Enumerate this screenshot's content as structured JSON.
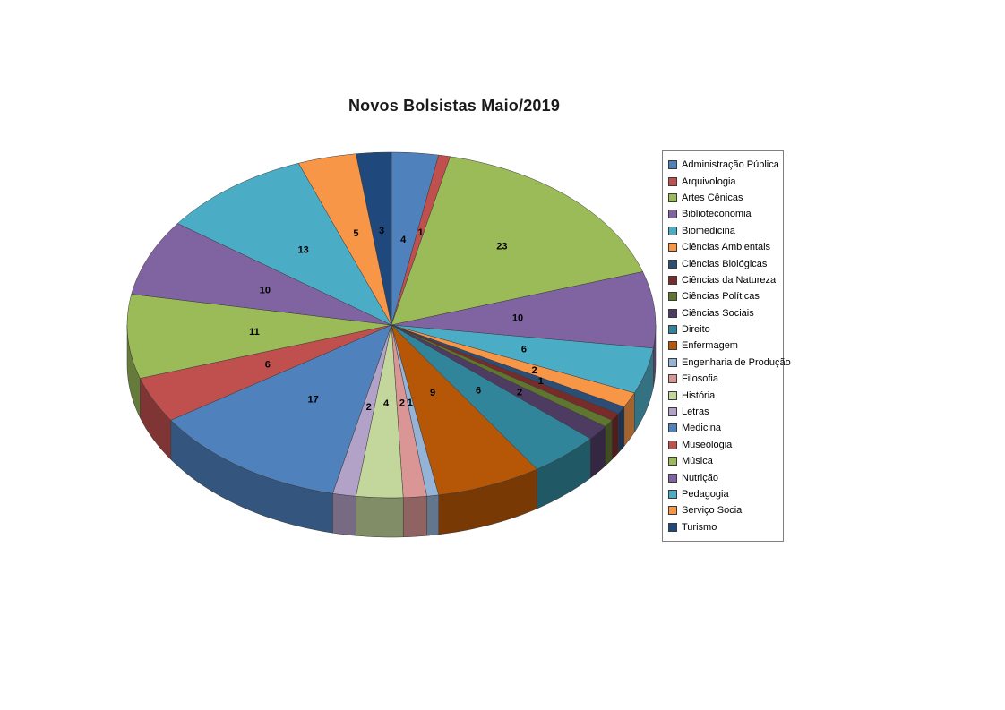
{
  "page": {
    "background": "#ffffff"
  },
  "chart_data": {
    "type": "pie",
    "effect": "3d",
    "title": "Novos Bolsistas Maio/2019",
    "legend_position": "right",
    "data_labels": "values",
    "slices": [
      {
        "name": "Administração Pública",
        "value": 4,
        "color": "#4F81BD",
        "label_visible": true,
        "label_r": 0.5
      },
      {
        "name": "Arquivologia",
        "value": 1,
        "color": "#C0504D",
        "label_visible": true,
        "label_r": 0.55
      },
      {
        "name": "Artes Cênicas",
        "value": 23,
        "color": "#9BBB59",
        "label_visible": true,
        "label_r": 0.62
      },
      {
        "name": "Biblioteconomia",
        "value": 10,
        "color": "#8064A2",
        "label_visible": true,
        "label_r": 0.48
      },
      {
        "name": "Biomedicina",
        "value": 6,
        "color": "#4BACC6",
        "label_visible": true,
        "label_r": 0.52
      },
      {
        "name": "Ciências Ambientais",
        "value": 2,
        "color": "#F79646",
        "label_visible": true,
        "label_r": 0.6
      },
      {
        "name": "Ciências Biológicas",
        "value": 1,
        "color": "#2C4D75",
        "label_visible": true,
        "label_r": 0.65
      },
      {
        "name": "Ciências da Natureza",
        "value": 1,
        "color": "#772C2A",
        "label_visible": false,
        "label_r": 0.65
      },
      {
        "name": "Ciências Políticas",
        "value": 1,
        "color": "#5F7530",
        "label_visible": false,
        "label_r": 0.65
      },
      {
        "name": "Ciências Sociais",
        "value": 2,
        "color": "#4D3B62",
        "label_visible": true,
        "label_r": 0.62
      },
      {
        "name": "Direito",
        "value": 6,
        "color": "#31859B",
        "label_visible": true,
        "label_r": 0.5
      },
      {
        "name": "Enfermagem",
        "value": 9,
        "color": "#B65708",
        "label_visible": true,
        "label_r": 0.42
      },
      {
        "name": "Engenharia de Produção",
        "value": 1,
        "color": "#95B3D7",
        "label_visible": true,
        "label_r": 0.45
      },
      {
        "name": "Filosofia",
        "value": 2,
        "color": "#D99694",
        "label_visible": true,
        "label_r": 0.45
      },
      {
        "name": "História",
        "value": 4,
        "color": "#C3D69B",
        "label_visible": true,
        "label_r": 0.45
      },
      {
        "name": "Letras",
        "value": 2,
        "color": "#B3A2C7",
        "label_visible": true,
        "label_r": 0.48
      },
      {
        "name": "Medicina",
        "value": 17,
        "color": "#4F81BD",
        "label_visible": true,
        "label_r": 0.52
      },
      {
        "name": "Museologia",
        "value": 6,
        "color": "#C0504D",
        "label_visible": true,
        "label_r": 0.52
      },
      {
        "name": "Música",
        "value": 11,
        "color": "#9BBB59",
        "label_visible": true,
        "label_r": 0.52
      },
      {
        "name": "Nutrição",
        "value": 10,
        "color": "#8064A2",
        "label_visible": true,
        "label_r": 0.52
      },
      {
        "name": "Pedagogia",
        "value": 13,
        "color": "#4BACC6",
        "label_visible": true,
        "label_r": 0.55
      },
      {
        "name": "Serviço Social",
        "value": 5,
        "color": "#F79646",
        "label_visible": true,
        "label_r": 0.55
      },
      {
        "name": "Turismo",
        "value": 3,
        "color": "#1F497D",
        "label_visible": true,
        "label_r": 0.55
      }
    ]
  }
}
